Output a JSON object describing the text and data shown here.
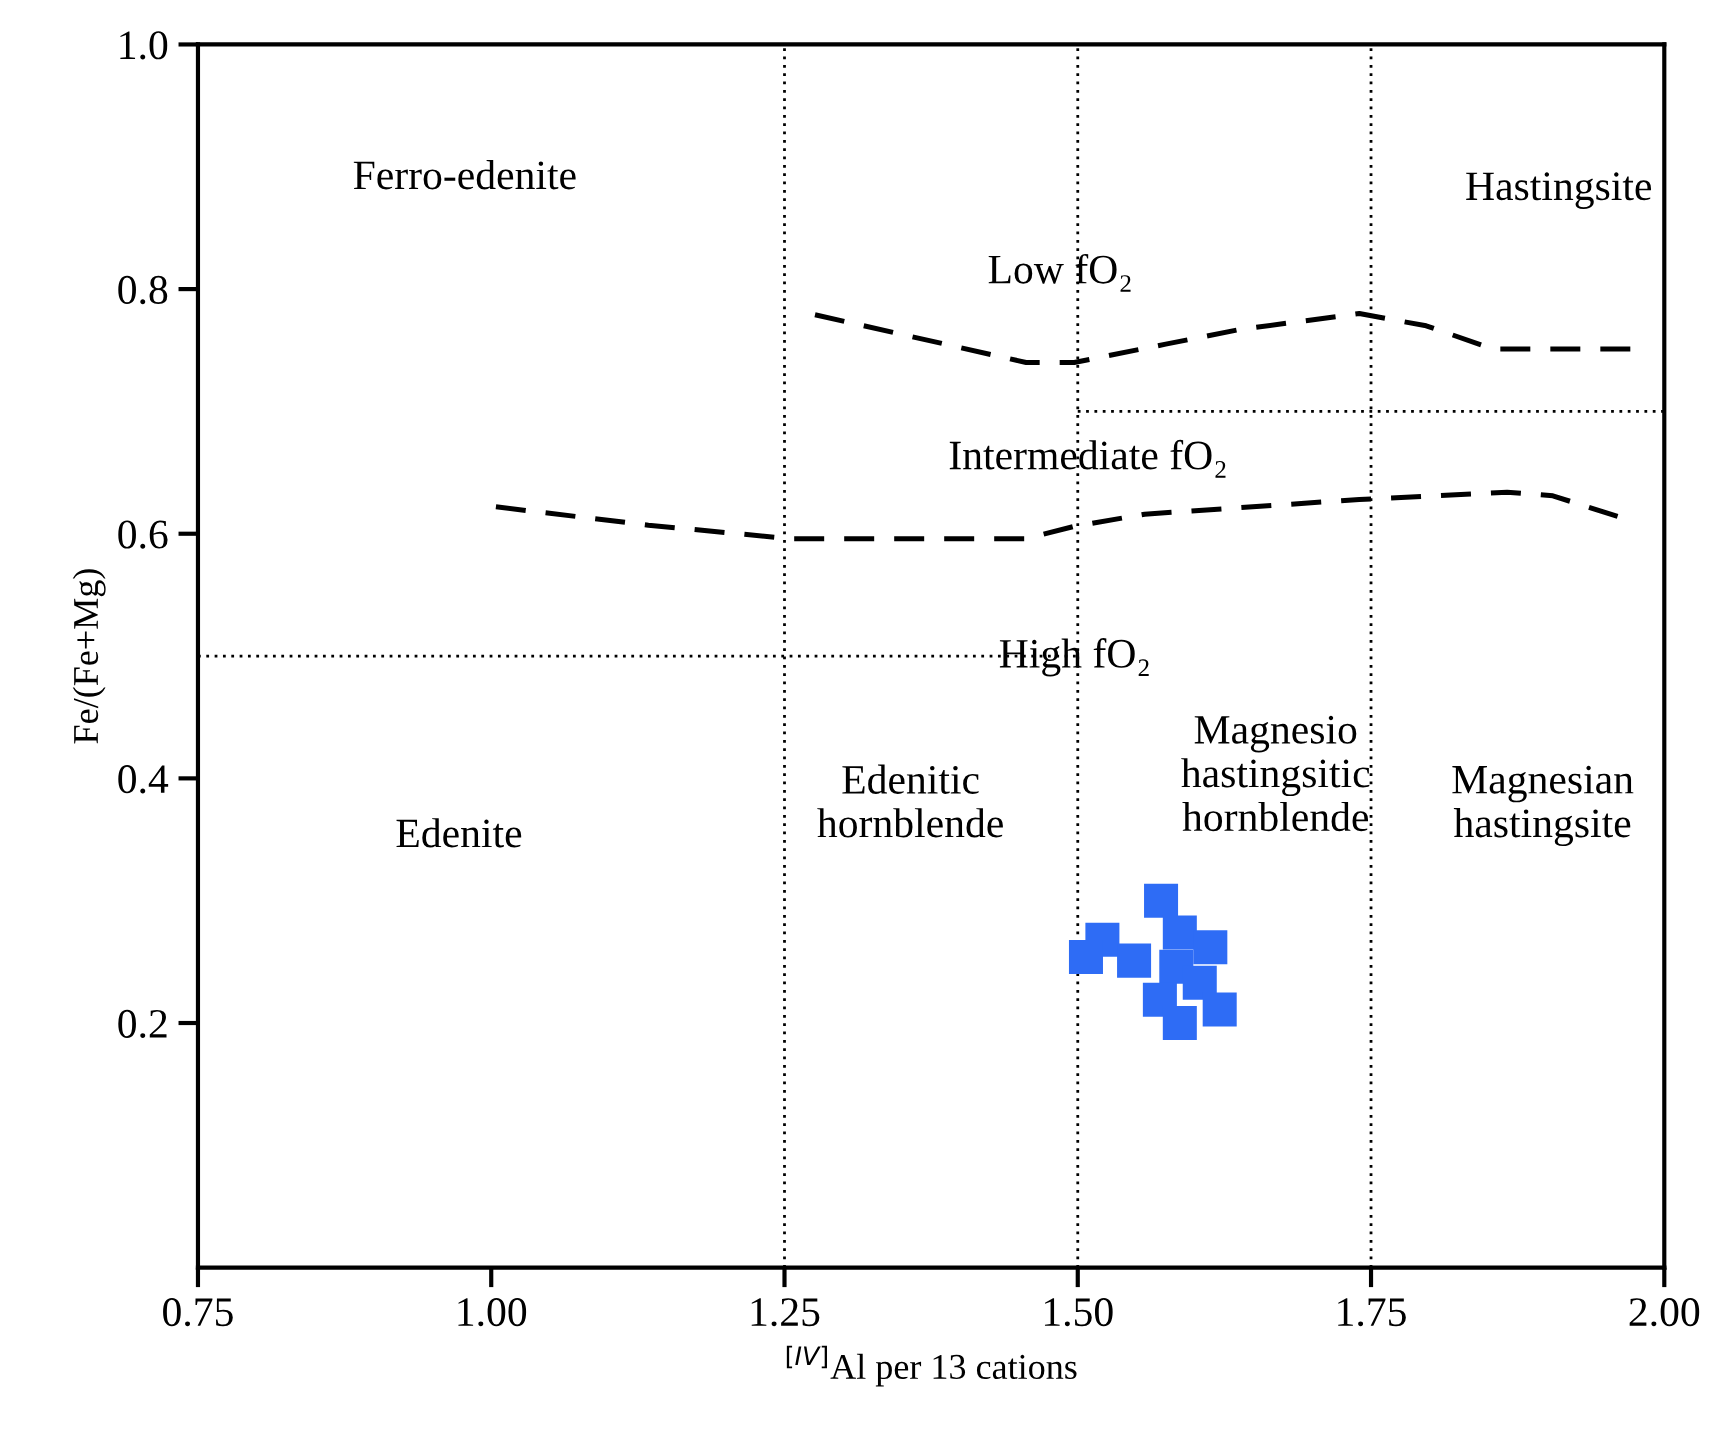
{
  "chart_data": {
    "type": "scatter",
    "xlabel": "$^{[IV]}$Al per 13 cations",
    "ylabel": "Fe/(Fe+Mg)",
    "xlim": [
      0.75,
      2.0
    ],
    "ylim": [
      0,
      1.0
    ],
    "xticks": [
      0.75,
      {
        "value": 1.0,
        "label": "1.00"
      },
      1.25,
      {
        "value": 1.5,
        "label": "1.50"
      },
      1.75,
      {
        "value": 2.0,
        "label": "2.00"
      }
    ],
    "yticks": [
      0.2,
      0.4,
      0.6,
      0.8,
      {
        "value": 1.0,
        "label": "1.0"
      }
    ],
    "grid": false,
    "legend": false,
    "marker": "square",
    "series": [
      {
        "color": "#2e6cf5",
        "x": [
          1.571,
          1.521,
          1.507,
          1.548,
          1.587,
          1.613,
          1.584,
          1.604,
          1.57,
          1.621,
          1.587
        ],
        "values": [
          0.3,
          0.268,
          0.254,
          0.251,
          0.274,
          0.262,
          0.246,
          0.233,
          0.219,
          0.211,
          0.2
        ]
      },
      {
        "type": "line",
        "color": "#000000",
        "line_style": "dashed",
        "marker": "none",
        "x": [
          1.276,
          1.456,
          1.497,
          1.575,
          1.638,
          1.74,
          1.797,
          1.854,
          1.974
        ],
        "values": [
          0.779,
          0.74,
          0.74,
          0.755,
          0.767,
          0.78,
          0.77,
          0.751,
          0.751
        ]
      },
      {
        "type": "line",
        "color": "#000000",
        "line_style": "dashed",
        "marker": "none",
        "x": [
          1.004,
          1.134,
          1.254,
          1.456,
          1.497,
          1.557,
          1.74,
          1.866,
          1.905,
          1.964
        ],
        "values": [
          0.622,
          0.607,
          0.596,
          0.596,
          0.606,
          0.616,
          0.628,
          0.634,
          0.631,
          0.613
        ]
      },
      {
        "type": "line",
        "color": "#000000",
        "line_style": "dotted",
        "marker": "none",
        "x": [
          0.75,
          1.5
        ],
        "values": [
          0.5,
          0.5
        ]
      },
      {
        "type": "line",
        "color": "#000000",
        "line_style": "dotted",
        "marker": "none",
        "x": [
          1.5,
          2.0
        ],
        "values": [
          0.7,
          0.7
        ]
      }
    ],
    "ref_lines": [
      {
        "axis": "x",
        "value": 1.25,
        "color": "#000000",
        "line_style": "dotted"
      },
      {
        "axis": "x",
        "value": 1.5,
        "color": "#000000",
        "line_style": "dotted"
      },
      {
        "axis": "x",
        "value": 1.75,
        "color": "#000000",
        "line_style": "dotted"
      }
    ],
    "annotations": [
      "Ferro-edenite",
      "Hastingsite",
      "Low fO₂",
      "Intermediate fO₂",
      "High fO₂",
      "Edenite",
      "Edenitic\nhornblende",
      "Magnesio\nhastingsitic\nhornblende",
      "Magnesian\nhastingsite"
    ]
  }
}
